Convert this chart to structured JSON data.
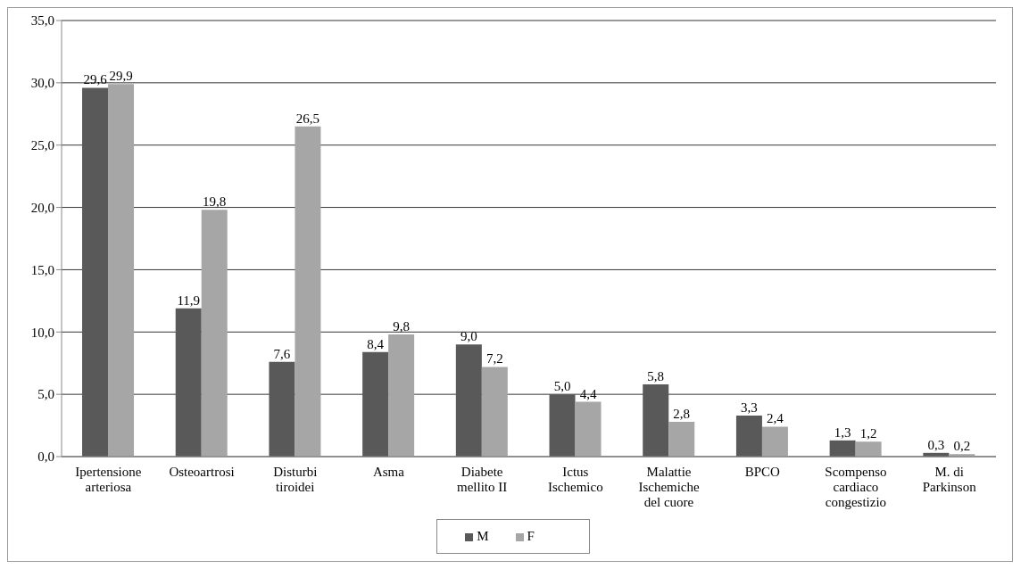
{
  "chart_data": {
    "type": "bar",
    "categories": [
      "Ipertensione arteriosa",
      "Osteoartrosi",
      "Disturbi tiroidei",
      "Asma",
      "Diabete mellito II",
      "Ictus Ischemico",
      "Malattie Ischemiche del cuore",
      "BPCO",
      "Scompenso cardiaco congestizio",
      "M. di Parkinson"
    ],
    "series": [
      {
        "name": "M",
        "color": "#595959",
        "values": [
          29.6,
          11.9,
          7.6,
          8.4,
          9.0,
          5.0,
          5.8,
          3.3,
          1.3,
          0.3
        ],
        "value_labels": [
          "29,6",
          "11,9",
          "7,6",
          "8,4",
          "9,0",
          "5,0",
          "5,8",
          "3,3",
          "1,3",
          "0,3"
        ]
      },
      {
        "name": "F",
        "color": "#a6a6a6",
        "values": [
          29.9,
          19.8,
          26.5,
          9.8,
          7.2,
          4.4,
          2.8,
          2.4,
          1.2,
          0.2
        ],
        "value_labels": [
          "29,9",
          "19,8",
          "26,5",
          "9,8",
          "7,2",
          "4,4",
          "2,8",
          "2,4",
          "1,2",
          "0,2"
        ]
      }
    ],
    "ylim": [
      0,
      35
    ],
    "yticks": [
      {
        "value": 0,
        "label": "0,0"
      },
      {
        "value": 5,
        "label": "5,0"
      },
      {
        "value": 10,
        "label": "10,0"
      },
      {
        "value": 15,
        "label": "15,0"
      },
      {
        "value": 20,
        "label": "20,0"
      },
      {
        "value": 25,
        "label": "25,0"
      },
      {
        "value": 30,
        "label": "30,0"
      },
      {
        "value": 35,
        "label": "35,0"
      }
    ],
    "grid": "y",
    "legend": "bottom"
  }
}
